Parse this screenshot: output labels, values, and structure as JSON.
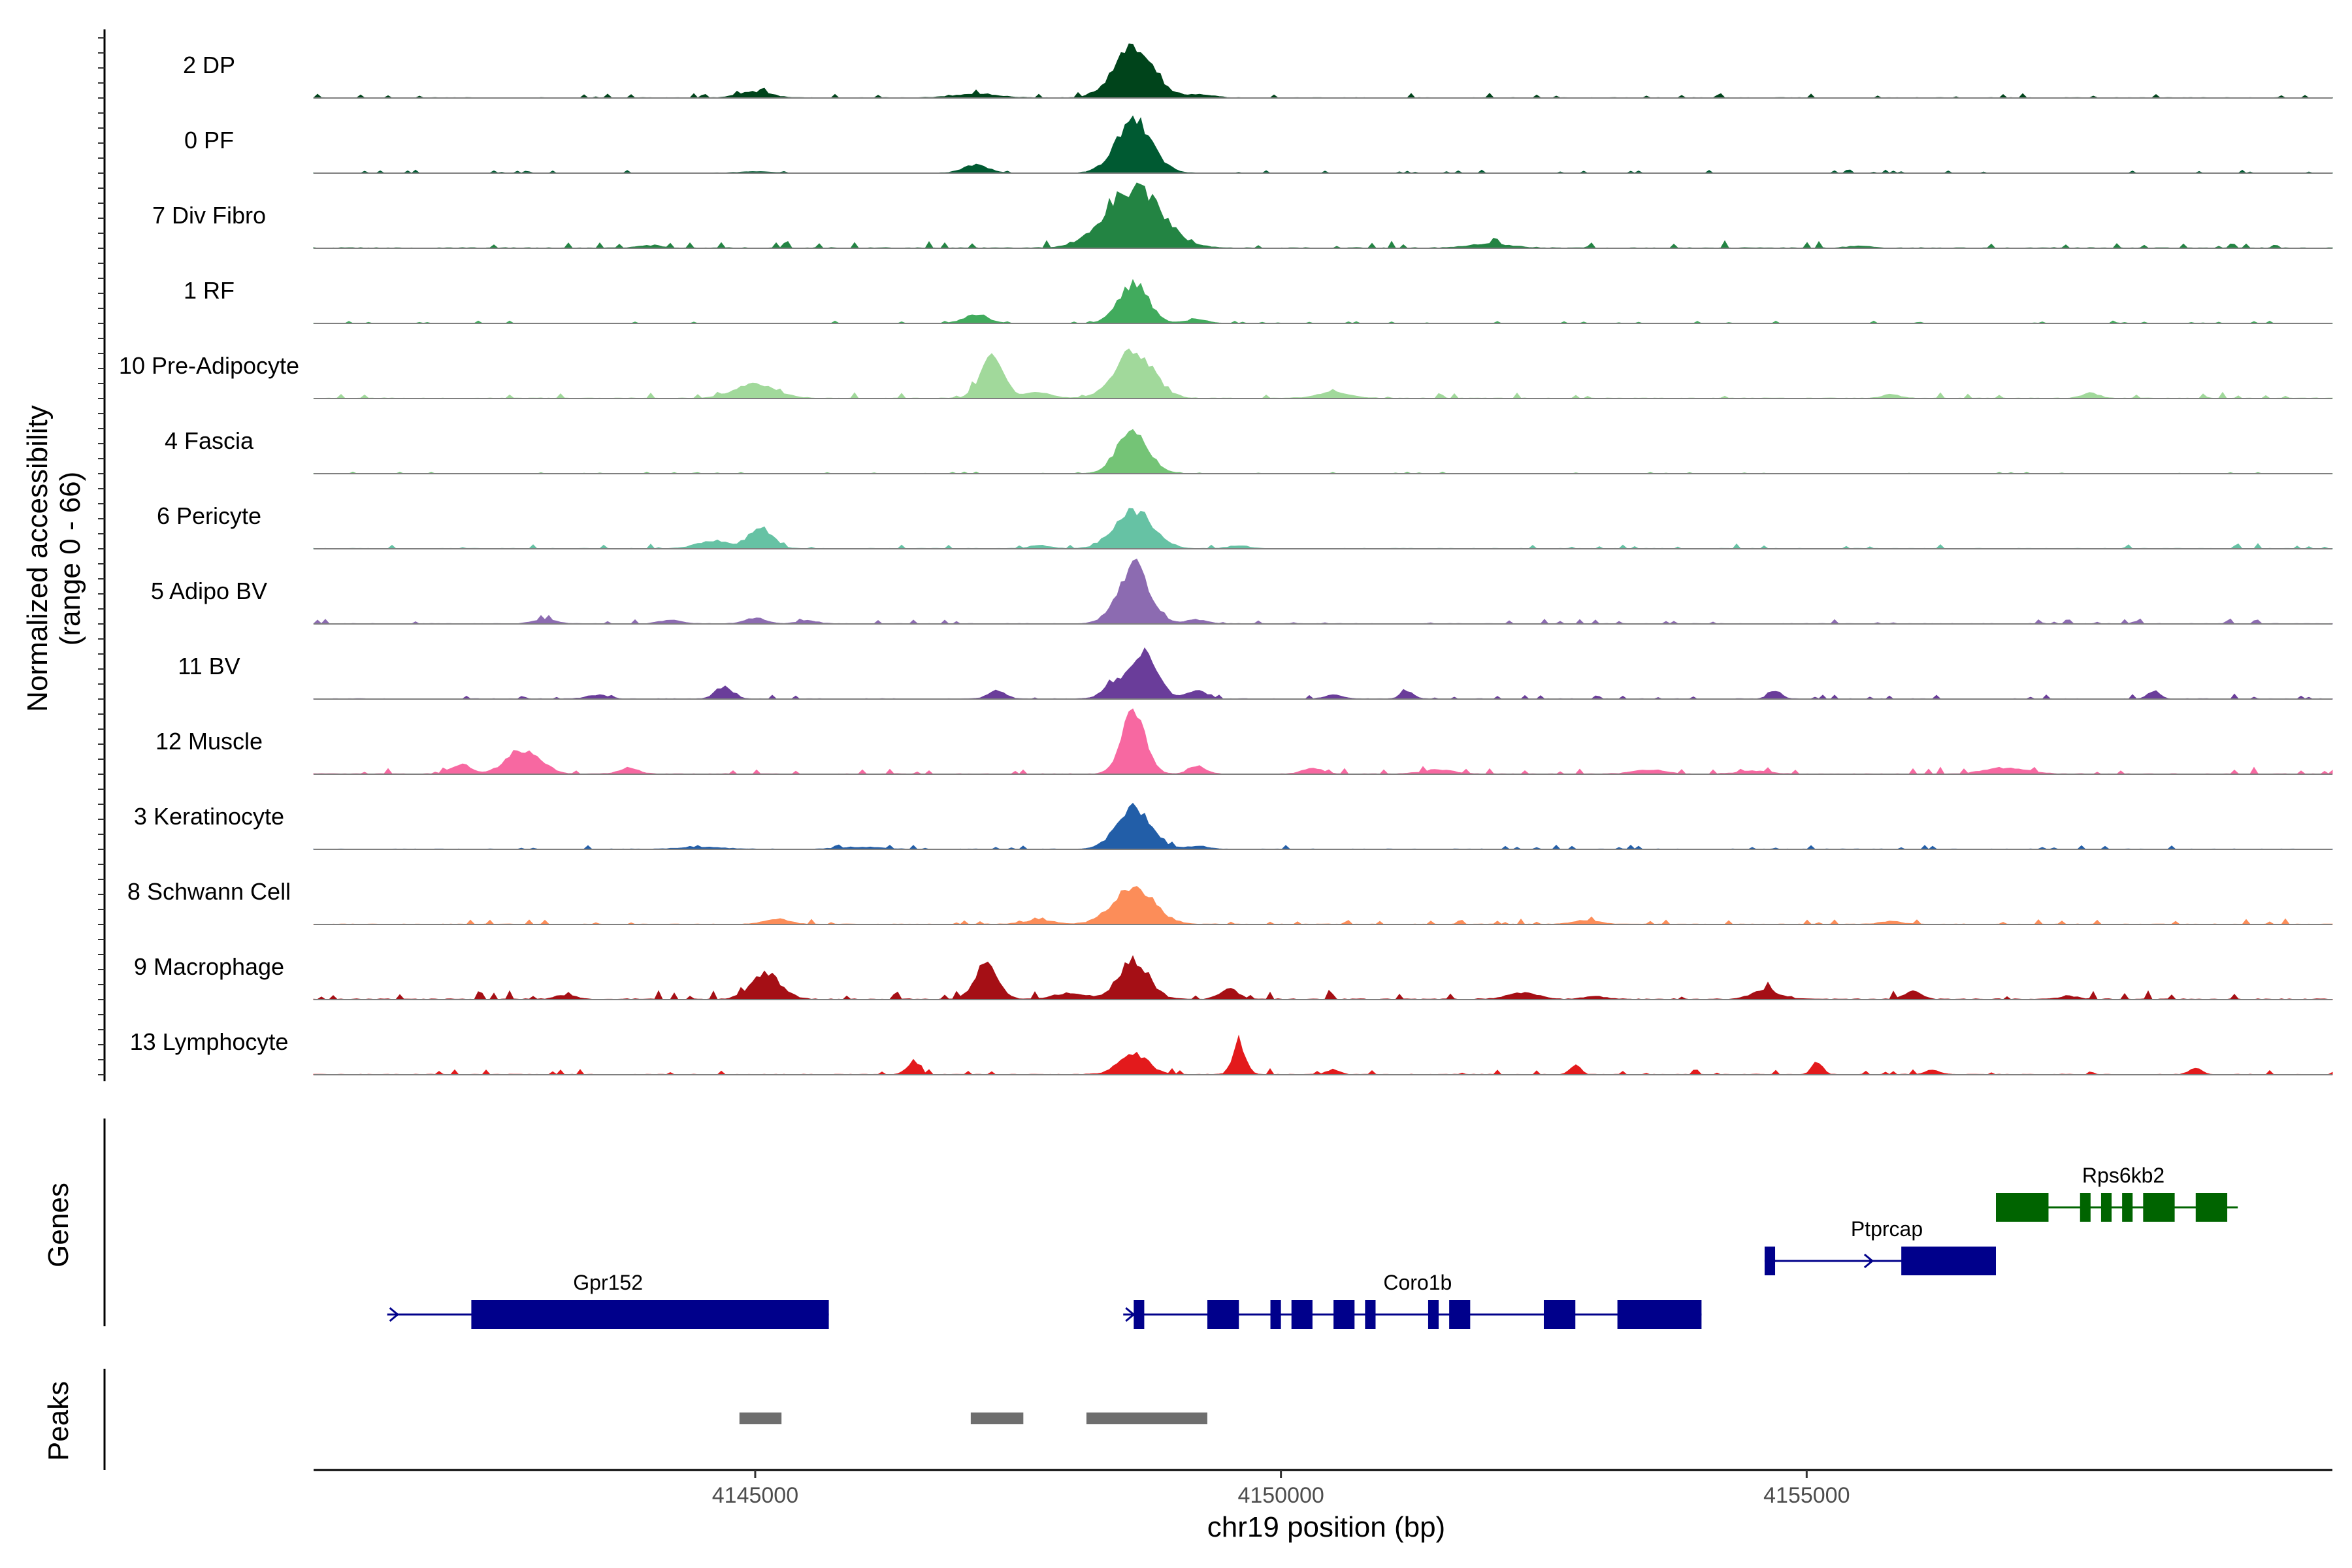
{
  "chart_data": [
    {
      "type": "area",
      "ylabel": "Normalized accessibility",
      "ylabel_range": "(range 0 - 66)",
      "ylim": [
        0,
        66
      ],
      "x_range": [
        4140800,
        4160000
      ],
      "series": [
        {
          "name": "2 DP",
          "color": "#00441b",
          "peaks": [
            [
              4145000,
              150,
              6
            ],
            [
              4147100,
              200,
              4
            ],
            [
              4148600,
              180,
              50
            ],
            [
              4149200,
              150,
              3
            ]
          ],
          "noise": 1.2
        },
        {
          "name": "0 PF",
          "color": "#005a32",
          "peaks": [
            [
              4147100,
              120,
              8
            ],
            [
              4148600,
              170,
              50
            ],
            [
              4145000,
              150,
              1.5
            ]
          ],
          "noise": 0.8
        },
        {
          "name": "7 Div Fibro",
          "color": "#238443",
          "peaks": [
            [
              4148600,
              260,
              60
            ],
            [
              4152000,
              200,
              4
            ],
            [
              4144000,
              120,
              2.5
            ],
            [
              4155500,
              100,
              2
            ]
          ],
          "noise": 1.8
        },
        {
          "name": "1 RF",
          "color": "#41ab5d",
          "peaks": [
            [
              4147100,
              120,
              8
            ],
            [
              4148600,
              140,
              40
            ],
            [
              4149200,
              100,
              4
            ]
          ],
          "noise": 0.6
        },
        {
          "name": "10 Pre-Adipocyte",
          "color": "#a1d99b",
          "peaks": [
            [
              4147250,
              110,
              40
            ],
            [
              4148600,
              180,
              48
            ],
            [
              4145000,
              200,
              14
            ],
            [
              4150500,
              150,
              6
            ],
            [
              4147700,
              120,
              6
            ],
            [
              4157700,
              80,
              5
            ],
            [
              4155800,
              80,
              4
            ]
          ],
          "noise": 1.5
        },
        {
          "name": "4 Fascia",
          "color": "#74c476",
          "peaks": [
            [
              4148600,
              150,
              38
            ],
            [
              4148500,
              80,
              5
            ]
          ],
          "noise": 0.4
        },
        {
          "name": "6 Pericyte",
          "color": "#66c2a4",
          "peaks": [
            [
              4148600,
              180,
              38
            ],
            [
              4145050,
              110,
              22
            ],
            [
              4144600,
              150,
              8
            ],
            [
              4147700,
              100,
              3
            ],
            [
              4149600,
              100,
              3
            ]
          ],
          "noise": 1.2
        },
        {
          "name": "5 Adipo BV",
          "color": "#8c6bb1",
          "peaks": [
            [
              4148600,
              150,
              58
            ],
            [
              4149200,
              100,
              4
            ],
            [
              4143000,
              100,
              5
            ],
            [
              4145000,
              100,
              6
            ],
            [
              4144200,
              100,
              4
            ],
            [
              4145500,
              100,
              3
            ]
          ],
          "noise": 1.2
        },
        {
          "name": "11 BV",
          "color": "#6a3d9a",
          "peaks": [
            [
              4148700,
              130,
              46
            ],
            [
              4148400,
              100,
              12
            ],
            [
              4149200,
              90,
              8
            ],
            [
              4144700,
              80,
              12
            ],
            [
              4147300,
              80,
              8
            ],
            [
              4151200,
              60,
              8
            ],
            [
              4154700,
              60,
              8
            ],
            [
              4158300,
              60,
              8
            ],
            [
              4150500,
              80,
              4
            ],
            [
              4143500,
              100,
              4
            ]
          ],
          "noise": 1.2
        },
        {
          "name": "12 Muscle",
          "color": "#f768a1",
          "peaks": [
            [
              4148600,
              110,
              66
            ],
            [
              4142800,
              160,
              24
            ],
            [
              4142200,
              90,
              10
            ],
            [
              4143800,
              90,
              6
            ],
            [
              4149200,
              80,
              8
            ],
            [
              4150300,
              90,
              6
            ],
            [
              4151500,
              150,
              4
            ],
            [
              4153500,
              150,
              4
            ],
            [
              4156900,
              200,
              6
            ],
            [
              4154500,
              150,
              3
            ]
          ],
          "noise": 1.5
        },
        {
          "name": "3 Keratinocyte",
          "color": "#225ea8",
          "peaks": [
            [
              4148600,
              160,
              42
            ],
            [
              4149200,
              100,
              3
            ],
            [
              4144500,
              200,
              2
            ],
            [
              4146000,
              200,
              2
            ]
          ],
          "noise": 1.1
        },
        {
          "name": "8 Schwann Cell",
          "color": "#fc8d59",
          "peaks": [
            [
              4148600,
              190,
              38
            ],
            [
              4145200,
              120,
              5
            ],
            [
              4147700,
              150,
              4
            ],
            [
              4152900,
              120,
              4
            ],
            [
              4155800,
              100,
              3
            ]
          ],
          "noise": 1.4
        },
        {
          "name": "9 Macrophage",
          "color": "#a50f15",
          "peaks": [
            [
              4148600,
              140,
              40
            ],
            [
              4145100,
              140,
              26
            ],
            [
              4147200,
              110,
              34
            ],
            [
              4149500,
              90,
              10
            ],
            [
              4148000,
              150,
              6
            ],
            [
              4154600,
              120,
              10
            ],
            [
              4156000,
              80,
              8
            ],
            [
              4152300,
              150,
              6
            ],
            [
              4143200,
              100,
              4
            ],
            [
              4153000,
              100,
              3
            ],
            [
              4157500,
              100,
              3
            ]
          ],
          "noise": 2.2
        },
        {
          "name": "13 Lymphocyte",
          "color": "#e31a1c",
          "peaks": [
            [
              4148600,
              140,
              20
            ],
            [
              4149600,
              60,
              30
            ],
            [
              4146500,
              60,
              12
            ],
            [
              4152800,
              50,
              10
            ],
            [
              4155100,
              50,
              12
            ],
            [
              4150500,
              60,
              5
            ],
            [
              4158700,
              60,
              6
            ],
            [
              4156200,
              60,
              5
            ]
          ],
          "noise": 1.5
        }
      ]
    },
    {
      "type": "gene-track",
      "ylabel": "Genes",
      "genes": [
        {
          "name": "Gpr152",
          "color": "#00008b",
          "row": 1,
          "start": 4141500,
          "end": 4145700,
          "strand": "+",
          "exons": [
            [
              4142300,
              4145700
            ]
          ]
        },
        {
          "name": "Coro1b",
          "color": "#00008b",
          "row": 1,
          "start": 4148500,
          "end": 4154000,
          "strand": "+",
          "exons": [
            [
              4148600,
              4148700
            ],
            [
              4149300,
              4149600
            ],
            [
              4149900,
              4150000
            ],
            [
              4150100,
              4150300
            ],
            [
              4150500,
              4150700
            ],
            [
              4150800,
              4150900
            ],
            [
              4151400,
              4151500
            ],
            [
              4151600,
              4151800
            ],
            [
              4152500,
              4152800
            ],
            [
              4153200,
              4154000
            ]
          ]
        },
        {
          "name": "Ptprcap",
          "color": "#00008b",
          "row": 2,
          "start": 4154600,
          "end": 4156800,
          "strand": "+",
          "exons": [
            [
              4154600,
              4154700
            ],
            [
              4155900,
              4156800
            ]
          ]
        },
        {
          "name": "Rps6kb2",
          "color": "#006400",
          "row": 3,
          "start": 4156800,
          "end": 4159100,
          "strand": "+",
          "exons": [
            [
              4156800,
              4157300
            ],
            [
              4157600,
              4157700
            ],
            [
              4157800,
              4157900
            ],
            [
              4158000,
              4158100
            ],
            [
              4158200,
              4158500
            ],
            [
              4158700,
              4159000
            ]
          ]
        }
      ]
    },
    {
      "type": "peak-track",
      "ylabel": "Peaks",
      "color": "#6e6e6e",
      "peaks": [
        [
          4144850,
          4145250
        ],
        [
          4147050,
          4147550
        ],
        [
          4148150,
          4149300
        ]
      ]
    },
    {
      "type": "axis",
      "xlabel": "chr19 position (bp)",
      "xticks": [
        4145000,
        4150000,
        4155000
      ],
      "xtick_labels": [
        "4145000",
        "4150000",
        "4155000"
      ]
    }
  ]
}
